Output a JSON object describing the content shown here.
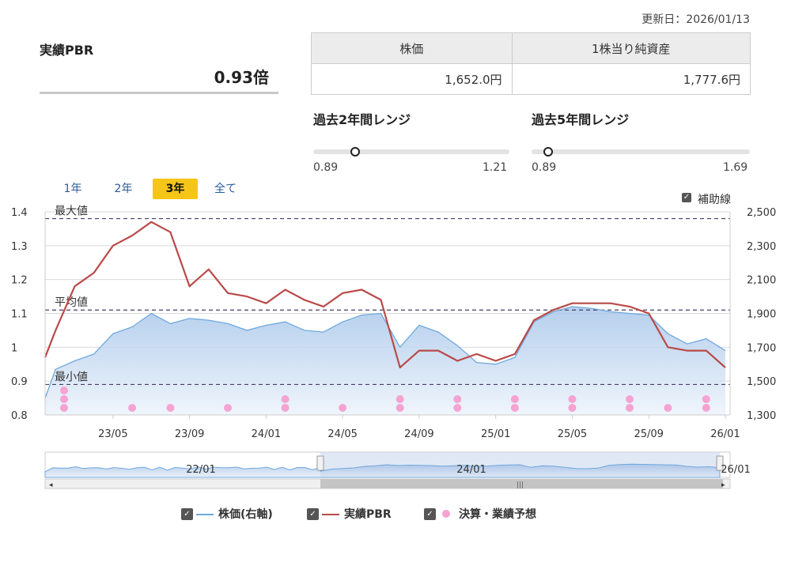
{
  "header": {
    "updated": "更新日：2026/01/13"
  },
  "pbr": {
    "label": "実績PBR",
    "value": "0.93倍"
  },
  "price_table": {
    "headers": [
      "株価",
      "1株当り純資産"
    ],
    "values": [
      "1,652.0円",
      "1,777.6円"
    ]
  },
  "ranges": [
    {
      "title": "過去2年間レンジ",
      "min": "0.89",
      "max": "1.21",
      "current": 0.93
    },
    {
      "title": "過去5年間レンジ",
      "min": "0.89",
      "max": "1.69",
      "current": 0.93
    }
  ],
  "periods": {
    "items": [
      "1年",
      "2年",
      "3年",
      "全て"
    ],
    "active": "3年"
  },
  "aux_lines": {
    "label": "補助線",
    "checked": true
  },
  "legend": {
    "price": "株価(右軸)",
    "pbr": "実績PBR",
    "earnings": "決算・業績予想"
  },
  "colors": {
    "price": "#6fa8dc",
    "pbr": "#b94a48",
    "earnings": "#f5a3d3",
    "accent": "#f5c518"
  },
  "chart_data": {
    "type": "line",
    "x": [
      "2023/01",
      "2023/02",
      "2023/03",
      "2023/04",
      "2023/05",
      "2023/06",
      "2023/07",
      "2023/08",
      "2023/09",
      "2023/10",
      "2023/11",
      "2023/12",
      "2024/01",
      "2024/02",
      "2024/03",
      "2024/04",
      "2024/05",
      "2024/06",
      "2024/07",
      "2024/08",
      "2024/09",
      "2024/10",
      "2024/11",
      "2024/12",
      "2025/01",
      "2025/02",
      "2025/03",
      "2025/04",
      "2025/05",
      "2025/06",
      "2025/07",
      "2025/08",
      "2025/09",
      "2025/10",
      "2025/11",
      "2025/12",
      "2026/01"
    ],
    "series": [
      {
        "name": "実績PBR",
        "axis": "left",
        "values": [
          0.97,
          1.05,
          1.18,
          1.22,
          1.3,
          1.33,
          1.37,
          1.34,
          1.18,
          1.23,
          1.16,
          1.15,
          1.13,
          1.17,
          1.14,
          1.12,
          1.16,
          1.17,
          1.14,
          0.94,
          0.99,
          0.99,
          0.96,
          0.98,
          0.96,
          0.98,
          1.08,
          1.11,
          1.13,
          1.13,
          1.13,
          1.12,
          1.1,
          1.0,
          0.99,
          0.99,
          0.94
        ]
      },
      {
        "name": "株価(右軸)",
        "axis": "right",
        "values": [
          1400,
          1570,
          1620,
          1660,
          1780,
          1820,
          1900,
          1840,
          1870,
          1860,
          1840,
          1800,
          1830,
          1850,
          1800,
          1790,
          1850,
          1890,
          1900,
          1700,
          1830,
          1790,
          1710,
          1610,
          1600,
          1640,
          1850,
          1910,
          1940,
          1930,
          1910,
          1900,
          1890,
          1780,
          1720,
          1750,
          1680
        ]
      }
    ],
    "earnings_x": [
      "2023/01",
      "2023/06",
      "2023/08",
      "2023/11",
      "2024/02",
      "2024/05",
      "2024/08",
      "2024/11",
      "2025/02",
      "2025/05",
      "2025/08",
      "2025/10",
      "2025/12"
    ],
    "earnings_count": [
      3,
      1,
      1,
      1,
      2,
      1,
      2,
      2,
      2,
      2,
      2,
      1,
      2
    ],
    "reference_lines": [
      {
        "label": "最大値",
        "value": 1.38
      },
      {
        "label": "平均値",
        "value": 1.11
      },
      {
        "label": "最小値",
        "value": 0.89
      }
    ],
    "ylim_left": [
      0.8,
      1.4
    ],
    "ylim_right": [
      1300,
      2500
    ],
    "left_ticks": [
      "0.8",
      "0.9",
      "1",
      "1.1",
      "1.2",
      "1.3",
      "1.4"
    ],
    "right_ticks": [
      "1,300",
      "1,500",
      "1,700",
      "1,900",
      "2,100",
      "2,300",
      "2,500"
    ],
    "x_ticks": [
      "23/05",
      "23/09",
      "24/01",
      "24/05",
      "24/09",
      "25/01",
      "25/05",
      "25/09",
      "26/01"
    ],
    "navigator_ticks": [
      "22/01",
      "24/01",
      "26/01"
    ]
  }
}
